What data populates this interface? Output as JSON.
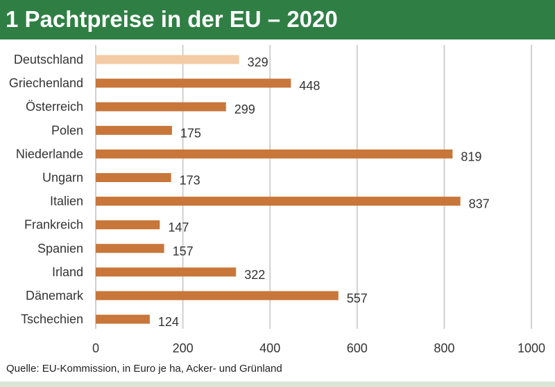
{
  "header": {
    "title": "1 Pachtpreise in der EU – 2020"
  },
  "source": "Quelle: EU-Kommission, in Euro je ha, Acker- und Grünland",
  "colors": {
    "header_bg": "#2f7f44",
    "bar": "#c8763a",
    "bar_highlight": "#f3cba6",
    "grid": "#d0d0d0"
  },
  "chart_data": {
    "type": "bar",
    "orientation": "horizontal",
    "categories": [
      "Deutschland",
      "Griechenland",
      "Österreich",
      "Polen",
      "Niederlande",
      "Ungarn",
      "Italien",
      "Frankreich",
      "Spanien",
      "Irland",
      "Dänemark",
      "Tschechien"
    ],
    "values": [
      329,
      448,
      299,
      175,
      819,
      173,
      837,
      147,
      157,
      322,
      557,
      124
    ],
    "highlight": "Deutschland",
    "xlim": [
      0,
      1000
    ],
    "xticks": [
      "0",
      "200",
      "400",
      "600",
      "800",
      "1000"
    ],
    "grid": "vertical",
    "legend": "none"
  }
}
